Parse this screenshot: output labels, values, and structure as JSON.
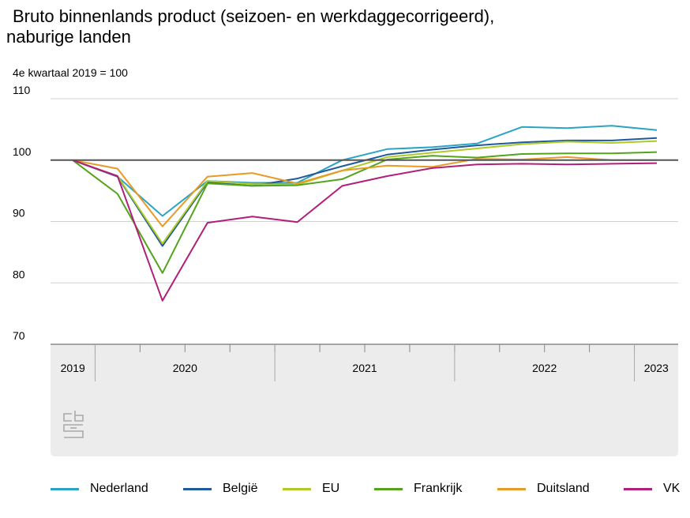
{
  "chart_data": {
    "type": "line",
    "title_line1": "Bruto binnenlands product (seizoen- en werkdaggecorrigeerd),",
    "title_line2": "naburige landen",
    "subtitle": "4e kwartaal 2019 = 100",
    "ylim": [
      70,
      110
    ],
    "yticks": [
      70,
      80,
      90,
      100,
      110
    ],
    "quarters": [
      "2019-Q4",
      "2020-Q1",
      "2020-Q2",
      "2020-Q3",
      "2020-Q4",
      "2021-Q1",
      "2021-Q2",
      "2021-Q3",
      "2021-Q4",
      "2022-Q1",
      "2022-Q2",
      "2022-Q3",
      "2022-Q4",
      "2023-Q1"
    ],
    "year_labels": [
      {
        "label": "2019",
        "from": 0,
        "to": 0
      },
      {
        "label": "2020",
        "from": 1,
        "to": 4
      },
      {
        "label": "2021",
        "from": 5,
        "to": 8
      },
      {
        "label": "2022",
        "from": 9,
        "to": 12
      },
      {
        "label": "2023",
        "from": 13,
        "to": 13
      }
    ],
    "reference_line": 100,
    "grid": true,
    "legend_position": "bottom",
    "series": [
      {
        "name": "Nederland",
        "color": "#2ba3c5",
        "values": [
          100,
          97.3,
          90.9,
          96.6,
          96.3,
          96.3,
          100.0,
          101.8,
          102.1,
          102.7,
          105.4,
          105.2,
          105.6,
          104.9
        ]
      },
      {
        "name": "België",
        "color": "#1f5a9a",
        "values": [
          100,
          97.3,
          86.0,
          96.4,
          95.8,
          97.0,
          99.0,
          100.9,
          101.7,
          102.4,
          102.9,
          103.2,
          103.2,
          103.6
        ]
      },
      {
        "name": "EU",
        "color": "#afcb27",
        "values": [
          100,
          97.4,
          86.4,
          96.6,
          96.1,
          96.0,
          98.3,
          100.5,
          101.2,
          101.9,
          102.6,
          103.0,
          102.8,
          103.1
        ]
      },
      {
        "name": "Frankrijk",
        "color": "#53a31d",
        "values": [
          100,
          94.5,
          81.6,
          96.2,
          95.8,
          95.9,
          96.9,
          100.1,
          100.7,
          100.4,
          101.0,
          101.1,
          101.1,
          101.3
        ]
      },
      {
        "name": "Duitsland",
        "color": "#e89a26",
        "values": [
          100,
          98.6,
          89.2,
          97.3,
          97.9,
          96.2,
          98.3,
          99.1,
          98.9,
          100.2,
          100.1,
          100.5,
          100.0,
          100.0
        ]
      },
      {
        "name": "VK",
        "color": "#b01f7a",
        "values": [
          100,
          97.4,
          77.1,
          89.8,
          90.8,
          89.9,
          95.8,
          97.4,
          98.7,
          99.3,
          99.4,
          99.3,
          99.4,
          99.5
        ]
      }
    ]
  },
  "logo_text": "cbs"
}
